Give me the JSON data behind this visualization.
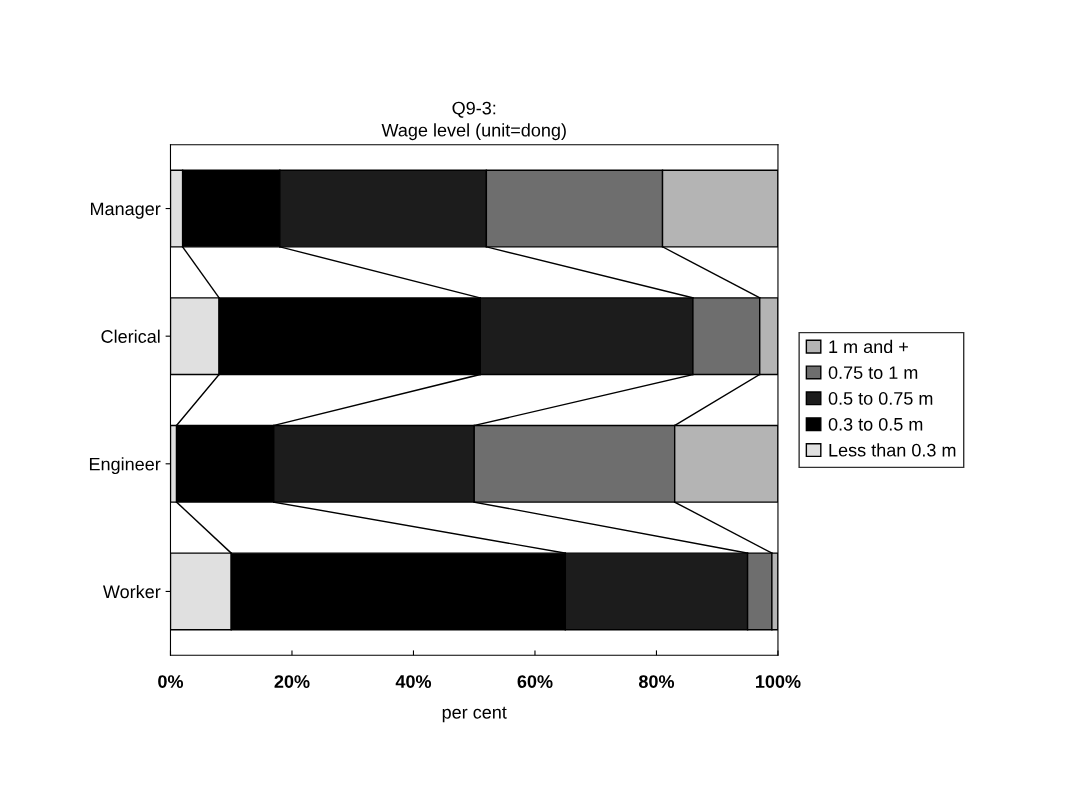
{
  "chart_data": {
    "type": "bar",
    "orientation": "horizontal",
    "stacked": true,
    "title": "Q9-3:\nWage level (unit=dong)",
    "xlabel": "per cent",
    "categories": [
      "Manager",
      "Clerical",
      "Engineer",
      "Worker"
    ],
    "series": [
      {
        "name": "Less than 0.3 m",
        "color": "#e0e0e0",
        "values": [
          2,
          8,
          1,
          10
        ]
      },
      {
        "name": "0.3 to 0.5 m",
        "color": "#000000",
        "values": [
          16,
          43,
          16,
          55
        ]
      },
      {
        "name": "0.5 to 0.75 m",
        "color": "#1c1c1c",
        "values": [
          34,
          35,
          33,
          30
        ]
      },
      {
        "name": "0.75 to 1 m",
        "color": "#6e6e6e",
        "values": [
          29,
          11,
          33,
          4
        ]
      },
      {
        "name": "1 m and +",
        "color": "#b4b4b4",
        "values": [
          19,
          3,
          17,
          1
        ]
      }
    ],
    "xlim": [
      0,
      100
    ],
    "xticks": [
      {
        "value": 0,
        "label": "0%"
      },
      {
        "value": 20,
        "label": "20%"
      },
      {
        "value": 40,
        "label": "40%"
      },
      {
        "value": 60,
        "label": "60%"
      },
      {
        "value": 80,
        "label": "80%"
      },
      {
        "value": 100,
        "label": "100%"
      }
    ],
    "grid": false,
    "legend": "right"
  }
}
